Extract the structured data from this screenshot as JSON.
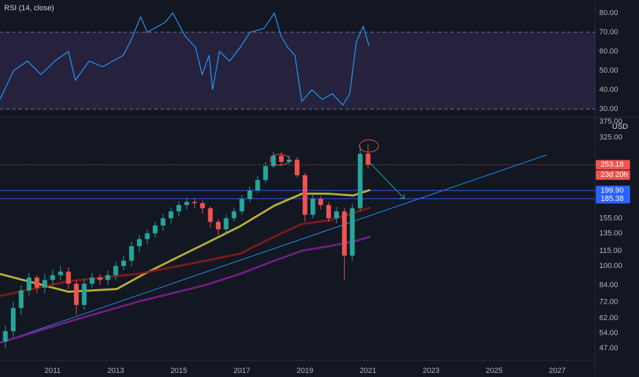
{
  "chart_data": [
    {
      "type": "line",
      "title": "RSI (14, close)",
      "x": [
        2009.33,
        2009.76,
        2010.2,
        2010.63,
        2011.07,
        2011.5,
        2011.72,
        2012.16,
        2012.59,
        2013.24,
        2013.46,
        2013.79,
        2014.0,
        2014.55,
        2014.81,
        2015.2,
        2015.53,
        2015.74,
        2015.96,
        2016.07,
        2016.29,
        2016.61,
        2016.94,
        2017.26,
        2017.7,
        2018.03,
        2018.24,
        2018.46,
        2018.68,
        2018.9,
        2019.22,
        2019.55,
        2019.87,
        2020.2,
        2020.42,
        2020.63,
        2020.85,
        2021.03
      ],
      "values": [
        35,
        50,
        55,
        48,
        55,
        60,
        45,
        55,
        52,
        58,
        65,
        78,
        70,
        75,
        80,
        68,
        62,
        48,
        58,
        40,
        60,
        55,
        62,
        70,
        72,
        80,
        68,
        62,
        58,
        34,
        40,
        35,
        38,
        32,
        38,
        65,
        73,
        63
      ],
      "color": "#2196f3",
      "xlim": [
        2009.33,
        2028.2
      ],
      "ylim": [
        26.1,
        86.8
      ],
      "yticks": [
        {
          "value": 30,
          "label": "30.00"
        },
        {
          "value": 40,
          "label": "40.00"
        },
        {
          "value": 50,
          "label": "50.00"
        },
        {
          "value": 60,
          "label": "60.00"
        },
        {
          "value": 70,
          "label": "70.00"
        },
        {
          "value": 80,
          "label": "80.00"
        }
      ],
      "band": [
        30,
        70
      ],
      "band_color": "#7e57c2"
    },
    {
      "type": "candlestick",
      "x": [
        2009.5,
        2009.75,
        2010.0,
        2010.25,
        2010.5,
        2010.75,
        2011.0,
        2011.25,
        2011.5,
        2011.75,
        2012.0,
        2012.25,
        2012.5,
        2012.75,
        2013.0,
        2013.25,
        2013.5,
        2013.75,
        2014.0,
        2014.25,
        2014.5,
        2014.75,
        2015.0,
        2015.25,
        2015.5,
        2015.75,
        2016.0,
        2016.25,
        2016.5,
        2016.75,
        2017.0,
        2017.25,
        2017.5,
        2017.75,
        2018.0,
        2018.25,
        2018.5,
        2018.75,
        2019.0,
        2019.25,
        2019.5,
        2019.75,
        2020.0,
        2020.25,
        2020.5,
        2020.75,
        2021.0
      ],
      "open": [
        50,
        55,
        68,
        80,
        90,
        82,
        88,
        92,
        95,
        85,
        70,
        85,
        90,
        88,
        92,
        100,
        105,
        120,
        128,
        135,
        145,
        155,
        165,
        175,
        180,
        178,
        170,
        150,
        140,
        155,
        165,
        185,
        200,
        220,
        250,
        275,
        260,
        265,
        230,
        160,
        185,
        175,
        155,
        165,
        110,
        170,
        280
      ],
      "high": [
        58,
        72,
        84,
        94,
        92,
        93,
        97,
        100,
        99,
        88,
        89,
        94,
        93,
        96,
        104,
        110,
        125,
        133,
        140,
        150,
        161,
        171,
        181,
        187,
        186,
        182,
        173,
        154,
        160,
        171,
        192,
        207,
        228,
        260,
        285,
        285,
        276,
        272,
        235,
        193,
        190,
        180,
        172,
        170,
        178,
        300,
        305
      ],
      "low": [
        47,
        52,
        64,
        76,
        78,
        78,
        84,
        88,
        81,
        64,
        67,
        82,
        84,
        84,
        88,
        96,
        100,
        114,
        122,
        130,
        138,
        148,
        158,
        168,
        170,
        162,
        142,
        133,
        134,
        150,
        160,
        180,
        195,
        215,
        245,
        250,
        255,
        225,
        150,
        155,
        168,
        150,
        148,
        88,
        105,
        165,
        245
      ],
      "close": [
        55,
        68,
        80,
        90,
        82,
        88,
        92,
        95,
        85,
        70,
        85,
        90,
        88,
        92,
        100,
        105,
        120,
        128,
        135,
        145,
        155,
        165,
        175,
        180,
        178,
        170,
        150,
        140,
        155,
        165,
        185,
        200,
        220,
        250,
        275,
        260,
        265,
        230,
        160,
        185,
        175,
        155,
        165,
        110,
        170,
        280,
        253.18
      ],
      "up_color": "#26a69a",
      "down_color": "#ef5350",
      "xlim": [
        2009.33,
        2028.2
      ],
      "xticks": [
        2011,
        2013,
        2015,
        2017,
        2019,
        2021,
        2023,
        2025,
        2027
      ],
      "ylim": [
        42.3,
        389
      ],
      "log_scale": true,
      "yticks": [
        {
          "value": 47,
          "label": "47.00"
        },
        {
          "value": 54,
          "label": "54.00"
        },
        {
          "value": 62,
          "label": "62.00"
        },
        {
          "value": 72,
          "label": "72.00"
        },
        {
          "value": 84,
          "label": "84.00"
        },
        {
          "value": 100,
          "label": "100.00"
        },
        {
          "value": 115,
          "label": "115.00"
        },
        {
          "value": 135,
          "label": "135.00"
        },
        {
          "value": 155,
          "label": "155.00"
        },
        {
          "value": 325,
          "label": "325.00"
        },
        {
          "value": 375,
          "label": "375.00"
        }
      ],
      "currency": "USD",
      "moving_averages": [
        {
          "color": "#c9c136",
          "width": 3,
          "x": [
            2009.33,
            2011.5,
            2013.03,
            2013.9,
            2015.0,
            2015.85,
            2016.94,
            2018.03,
            2018.9,
            2019.77,
            2020.53,
            2021.07
          ],
          "values": [
            93,
            79,
            81,
            93,
            109,
            123,
            144,
            174,
            194,
            194,
            191,
            201
          ]
        },
        {
          "color": "#8b1a1a",
          "width": 3,
          "x": [
            2009.33,
            2011.5,
            2013.68,
            2015.85,
            2016.94,
            2018.03,
            2018.9,
            2019.77,
            2020.63,
            2021.07
          ],
          "values": [
            76,
            87,
            93,
            105,
            112,
            131,
            147,
            152,
            164,
            171
          ]
        },
        {
          "color": "#7b1f8c",
          "width": 3,
          "x": [
            2009.33,
            2011.5,
            2013.68,
            2015.85,
            2016.94,
            2018.03,
            2018.9,
            2019.77,
            2020.63,
            2021.07
          ],
          "values": [
            49.5,
            60,
            72,
            84,
            93,
            105,
            115,
            120,
            126,
            131
          ]
        }
      ],
      "trendline": {
        "color": "#2196f3",
        "x": [
          2009.33,
          2026.66
        ],
        "values": [
          49.5,
          277
        ]
      },
      "price_lines": [
        {
          "value": 253.18,
          "label": "253.18",
          "color": "#ef5350"
        },
        {
          "value": 199.9,
          "label": "199.90",
          "color": "#2962ff"
        },
        {
          "value": 185.38,
          "label": "185.38",
          "color": "#2962ff"
        }
      ],
      "countdown": "23d 20h"
    }
  ]
}
